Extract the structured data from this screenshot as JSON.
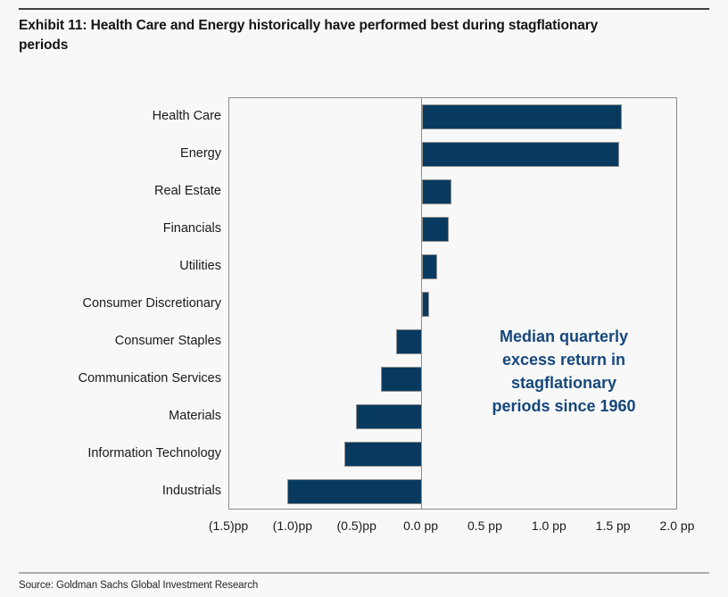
{
  "page": {
    "title_line1": "Exhibit 11: Health Care and Energy historically have performed best during stagflationary",
    "title_line2": "periods",
    "source": "Source: Goldman Sachs Global Investment Research"
  },
  "annotation": {
    "lines": [
      "Median quarterly",
      "excess return in",
      "stagflationary",
      "periods since 1960"
    ],
    "color": "#16477c"
  },
  "colors": {
    "background": "#f8f8f8",
    "bar_fill": "#083a5f",
    "bar_border": "#8f8f8f",
    "plot_border": "#8c8c8c",
    "annotation_text": "#16477c"
  },
  "chart_data": {
    "type": "bar",
    "orientation": "horizontal",
    "title": "Exhibit 11: Health Care and Energy historically have performed best during stagflationary periods",
    "xlabel": "",
    "ylabel": "",
    "unit": "pp",
    "xlim": [
      -1.5,
      2.0
    ],
    "grid": false,
    "zero_line": true,
    "legend": false,
    "categories": [
      "Health Care",
      "Energy",
      "Real Estate",
      "Financials",
      "Utilities",
      "Consumer Discretionary",
      "Consumer Staples",
      "Communication Services",
      "Materials",
      "Information Technology",
      "Industrials"
    ],
    "values": [
      1.56,
      1.54,
      0.23,
      0.21,
      0.12,
      0.06,
      -0.2,
      -0.32,
      -0.51,
      -0.6,
      -1.05
    ],
    "x_ticks": [
      {
        "value": -1.5,
        "label": "(1.5)pp"
      },
      {
        "value": -1.0,
        "label": "(1.0)pp"
      },
      {
        "value": -0.5,
        "label": "(0.5)pp"
      },
      {
        "value": 0.0,
        "label": "0.0 pp"
      },
      {
        "value": 0.5,
        "label": "0.5 pp"
      },
      {
        "value": 1.0,
        "label": "1.0 pp"
      },
      {
        "value": 1.5,
        "label": "1.5 pp"
      },
      {
        "value": 2.0,
        "label": "2.0 pp"
      }
    ],
    "annotation": "Median quarterly excess return in stagflationary periods since 1960"
  }
}
